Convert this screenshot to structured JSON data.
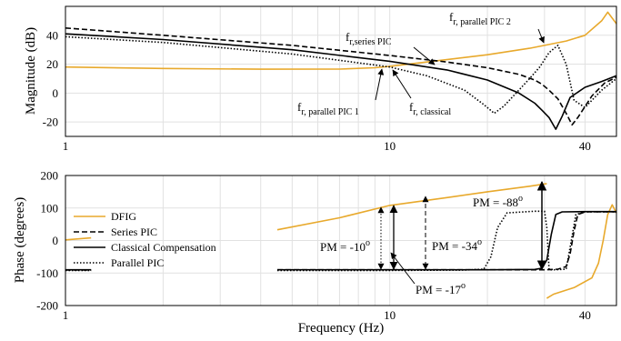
{
  "chart_data": [
    {
      "type": "line",
      "xscale": "log",
      "xlim": [
        1,
        50
      ],
      "ylim": [
        -30,
        60
      ],
      "ylabel": "Magnitude (dB)",
      "xlabel": "",
      "xticks": [
        1,
        10,
        40
      ],
      "yticks": [
        -20,
        0,
        20,
        40
      ],
      "grid": true,
      "series": [
        {
          "name": "DFIG",
          "color": "#E8A92C",
          "dash": "solid",
          "x": [
            1,
            2,
            4,
            7,
            9,
            10,
            13,
            20,
            27,
            30,
            35,
            40,
            45,
            47,
            50
          ],
          "y": [
            18,
            17,
            16.5,
            16.6,
            17.5,
            18.5,
            21.5,
            26.5,
            31,
            33,
            36,
            40,
            50,
            56,
            48
          ]
        },
        {
          "name": "Series PIC",
          "color": "#000000",
          "dash": "dashed",
          "x": [
            1,
            2,
            5,
            10,
            15,
            20,
            25,
            28,
            29.5,
            31,
            33,
            35,
            36.5,
            38,
            42,
            46,
            50
          ],
          "y": [
            45,
            40,
            33,
            26,
            21.5,
            17.5,
            13,
            9,
            6,
            2,
            -4,
            -14,
            -22,
            -17,
            -2,
            7,
            11
          ]
        },
        {
          "name": "Classical Compensation",
          "color": "#000000",
          "dash": "solid",
          "x": [
            1,
            2,
            5,
            10,
            15,
            20,
            25,
            28,
            29.5,
            31,
            32.5,
            34,
            36,
            40,
            45,
            50
          ],
          "y": [
            41,
            37,
            30,
            22,
            16,
            9,
            0,
            -7,
            -12,
            -17,
            -25,
            -16,
            -3,
            4,
            8,
            12
          ]
        },
        {
          "name": "Parallel PIC",
          "color": "#000000",
          "dash": "dotted",
          "x": [
            1,
            2,
            5,
            10,
            13,
            17,
            19.5,
            21,
            22.5,
            25,
            27,
            29,
            31,
            33,
            35,
            37,
            40,
            45,
            50
          ],
          "y": [
            39,
            35,
            27,
            18,
            12,
            2,
            -8,
            -14,
            -9,
            2,
            10,
            18,
            28,
            33,
            20,
            -5,
            -10,
            2,
            10
          ]
        }
      ],
      "annotations": [
        {
          "main": "f",
          "sub": "r,series PIC"
        },
        {
          "main": "f",
          "sub": "r, parallel PIC 2"
        },
        {
          "main": "f",
          "sub": "r, parallel PIC 1"
        },
        {
          "main": "f",
          "sub": "r, classical"
        }
      ]
    },
    {
      "type": "line",
      "xscale": "log",
      "xlim": [
        1,
        50
      ],
      "ylim": [
        -200,
        200
      ],
      "ylabel": "Phase (degrees)",
      "xlabel": "Frequency (Hz)",
      "xticks": [
        1,
        10,
        40
      ],
      "yticks": [
        -200,
        -100,
        0,
        100,
        200
      ],
      "grid": true,
      "legend": "left",
      "series": [
        {
          "name": "DFIG",
          "color": "#E8A92C",
          "dash": "solid",
          "segments": [
            {
              "x": [
                1,
                1.2
              ],
              "y": [
                2,
                8
              ]
            },
            {
              "x": [
                4.5,
                7,
                10,
                15,
                20,
                27,
                30.5
              ],
              "y": [
                33,
                70,
                108,
                132,
                150,
                167,
                175
              ]
            },
            {
              "x": [
                30.5,
                30.8,
                32,
                37,
                42,
                44,
                45.5,
                47,
                48.5,
                50
              ],
              "y": [
                -178,
                -175,
                -165,
                -145,
                -115,
                -70,
                0,
                80,
                110,
                85
              ]
            }
          ]
        },
        {
          "name": "Series PIC",
          "color": "#000000",
          "dash": "dashed",
          "segments": [
            {
              "x": [
                1,
                1.2
              ],
              "y": [
                -91,
                -91
              ]
            },
            {
              "x": [
                4.5,
                10,
                20,
                30,
                33,
                35,
                36,
                37,
                38,
                40,
                50
              ],
              "y": [
                -90,
                -90,
                -90,
                -90,
                -88,
                -80,
                -40,
                30,
                80,
                88,
                88
              ]
            }
          ]
        },
        {
          "name": "Classical Compensation",
          "color": "#000000",
          "dash": "solid",
          "segments": [
            {
              "x": [
                1,
                1.2
              ],
              "y": [
                -90,
                -90
              ]
            },
            {
              "x": [
                4.5,
                10,
                20,
                28,
                29.5,
                30.5,
                31.5,
                32.5,
                34,
                40,
                50
              ],
              "y": [
                -90,
                -90,
                -90,
                -89,
                -85,
                -60,
                20,
                80,
                88,
                89,
                89
              ]
            }
          ]
        },
        {
          "name": "Parallel PIC",
          "color": "#000000",
          "dash": "dotted",
          "segments": [
            {
              "x": [
                1,
                1.2
              ],
              "y": [
                -92,
                -92
              ]
            },
            {
              "x": [
                4.5,
                10,
                17,
                19.5,
                20.5,
                21.5,
                23,
                28,
                30,
                30.5,
                31,
                32,
                35,
                36,
                37.5,
                40,
                50
              ],
              "y": [
                -92,
                -92,
                -91,
                -88,
                -50,
                40,
                85,
                90,
                90,
                40,
                -90,
                -90,
                -88,
                -20,
                80,
                88,
                88
              ]
            }
          ]
        }
      ],
      "pm_annotations": [
        {
          "label": "PM = -10",
          "sup": "o"
        },
        {
          "label": "PM = -17",
          "sup": "o"
        },
        {
          "label": "PM = -34",
          "sup": "o"
        },
        {
          "label": "PM = -88",
          "sup": "o"
        }
      ]
    }
  ]
}
